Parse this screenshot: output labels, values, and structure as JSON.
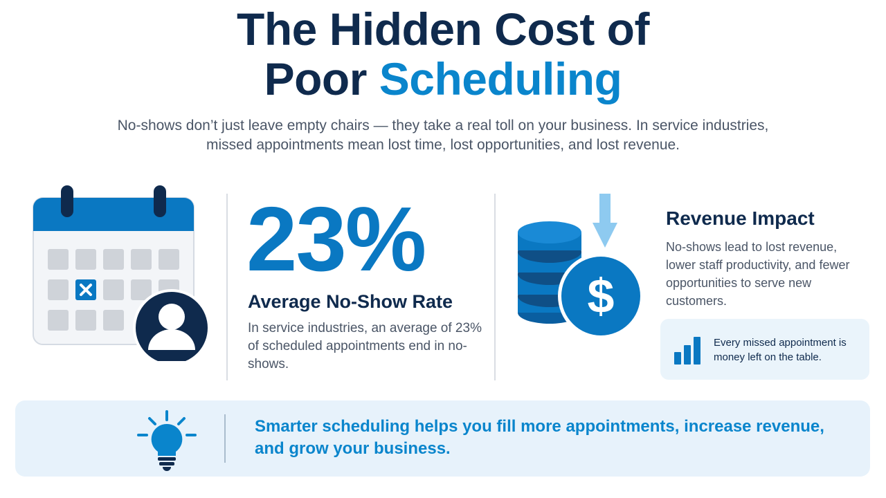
{
  "title": {
    "line1": "The Hidden Cost of",
    "line2_part1": "Poor",
    "line2_part2": "Scheduling"
  },
  "subtitle": "No-shows don’t just leave empty chairs — they take a real toll on your business. In service industries, missed appointments mean lost time, lost opportunities, and lost revenue.",
  "stat": {
    "value": "23%",
    "label": "Average No-Show Rate",
    "description": "In service industries, an average of 23% of scheduled appointments end in no-shows."
  },
  "revenue": {
    "title": "Revenue Impact",
    "description": "No-shows lead to lost revenue, lower staff productivity, and fewer opportunities to serve new customers."
  },
  "callout": {
    "text": "Every missed appointment is money left on the table."
  },
  "banner": {
    "text": "Smarter scheduling helps you fill more appointments, increase revenue, and grow your business."
  },
  "icons": {
    "calendar": "calendar-icon",
    "person": "person-icon",
    "coins": "coin-stack-icon",
    "dollar": "dollar-coin-icon",
    "arrow": "down-arrow-icon",
    "bars": "bar-chart-icon",
    "bulb": "lightbulb-icon"
  },
  "colors": {
    "navy": "#0f2a4d",
    "accent": "#0a85cc",
    "blue": "#0a78c2",
    "light_panel": "#e7f2fb"
  }
}
